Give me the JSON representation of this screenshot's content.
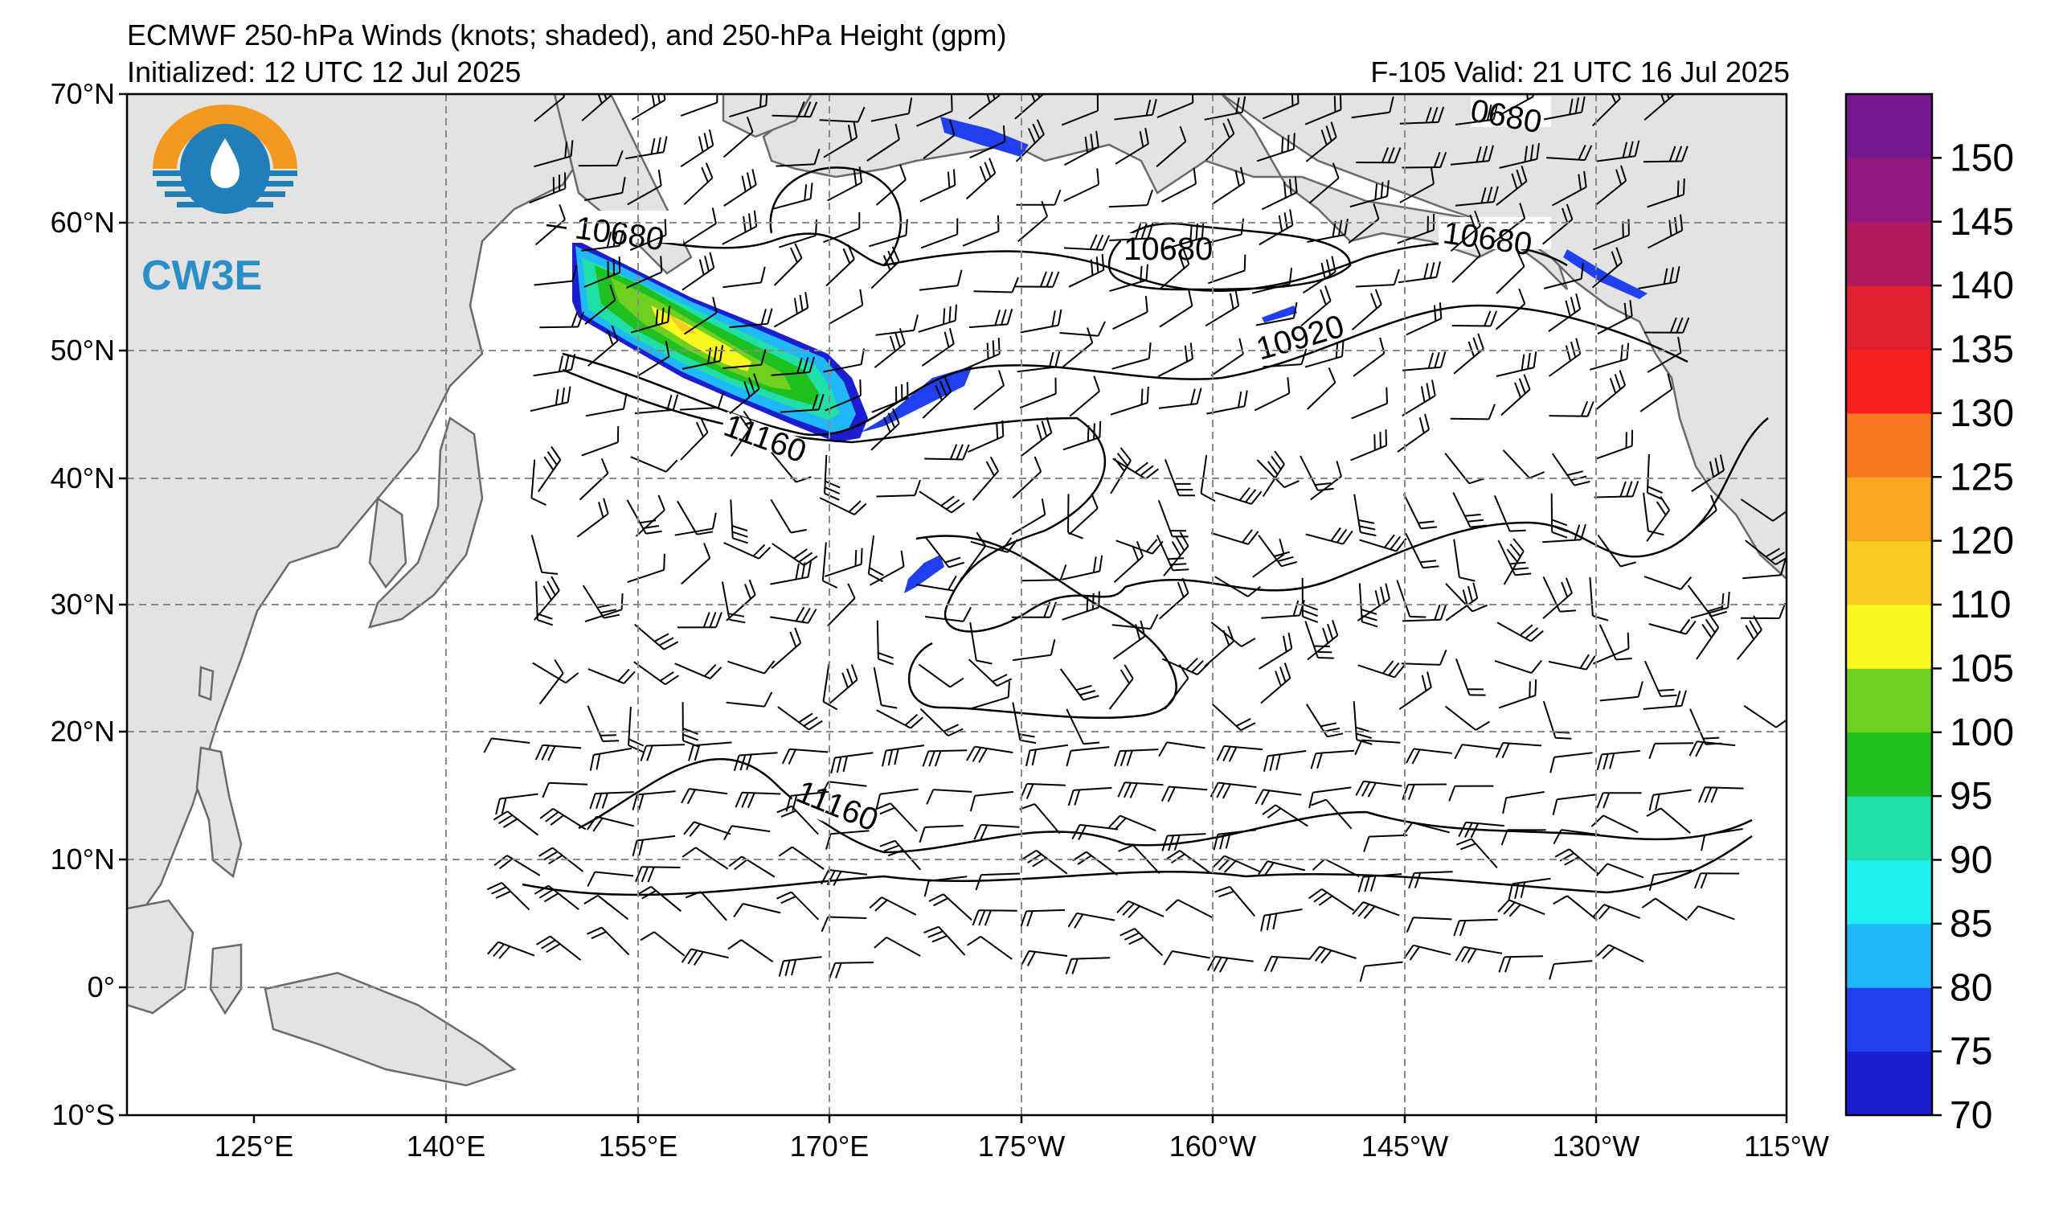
{
  "header": {
    "title_line1": "ECMWF 250-hPa Winds (knots; shaded), and 250-hPa Height (gpm)",
    "title_line2": "Initialized: 12 UTC 12 Jul 2025",
    "valid_line": "F-105  Valid: 21 UTC 16 Jul 2025"
  },
  "logo": {
    "text": "CW3E",
    "color": "#2b8fc7",
    "accent": "#f39a1e"
  },
  "map": {
    "lat_labels": [
      "70°N",
      "60°N",
      "50°N",
      "40°N",
      "30°N",
      "20°N",
      "10°N",
      "0°",
      "10°S"
    ],
    "lon_labels": [
      "125°E",
      "140°E",
      "155°E",
      "170°E",
      "175°W",
      "160°W",
      "145°W",
      "130°W",
      "115°W"
    ],
    "land_color": "#e3e3e3",
    "ocean_color": "#ffffff",
    "grid": "dashed",
    "height_contour_labels": [
      "10680",
      "10680",
      "10680",
      "10920",
      "11160",
      "11160",
      "0680"
    ]
  },
  "colorbar": {
    "ticks": [
      "70",
      "75",
      "80",
      "85",
      "90",
      "95",
      "100",
      "105",
      "110",
      "120",
      "125",
      "130",
      "135",
      "140",
      "145",
      "150"
    ],
    "colors": [
      "#1c1cd0",
      "#2040f0",
      "#20b8f8",
      "#1ef0ee",
      "#20e0a8",
      "#20c020",
      "#70d020",
      "#f8f820",
      "#f8cc20",
      "#f8a820",
      "#f87820",
      "#f82020",
      "#e02030",
      "#b01860",
      "#901880",
      "#781890"
    ]
  }
}
